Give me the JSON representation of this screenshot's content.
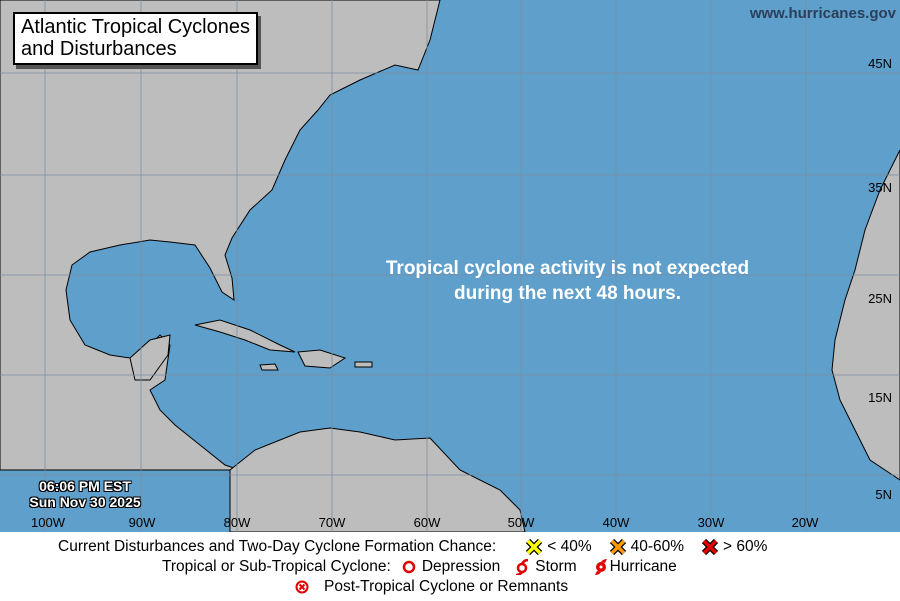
{
  "title": "Atlantic Tropical Cyclones and Disturbances",
  "title_lines": [
    "Atlantic Tropical Cyclones",
    "and Disturbances"
  ],
  "website": "www.hurricanes.gov",
  "message_lines": [
    "Tropical cyclone activity is not expected",
    "during the next 48 hours."
  ],
  "timestamp": {
    "time": "06:06 PM EST",
    "date": "Sun Nov 30 2025"
  },
  "longitude_labels": [
    "100W",
    "90W",
    "80W",
    "70W",
    "60W",
    "50W",
    "40W",
    "30W",
    "20W"
  ],
  "latitude_labels": [
    "45N",
    "35N",
    "25N",
    "15N",
    "5N"
  ],
  "legend": {
    "row1_label": "Current Disturbances and Two-Day Cyclone Formation Chance:",
    "low": "< 40%",
    "medium": "40-60%",
    "high": "> 60%",
    "row2_label": "Tropical or Sub-Tropical Cyclone:",
    "depression": "Depression",
    "storm": "Storm",
    "hurricane": "Hurricane",
    "post_tropical": "Post-Tropical Cyclone or Remnants"
  },
  "colors": {
    "ocean": "#5f9fcb",
    "land": "#bdbdbd",
    "low": "#ffff00",
    "medium": "#ff9900",
    "high": "#e00000",
    "cyclone": "#e00000"
  }
}
